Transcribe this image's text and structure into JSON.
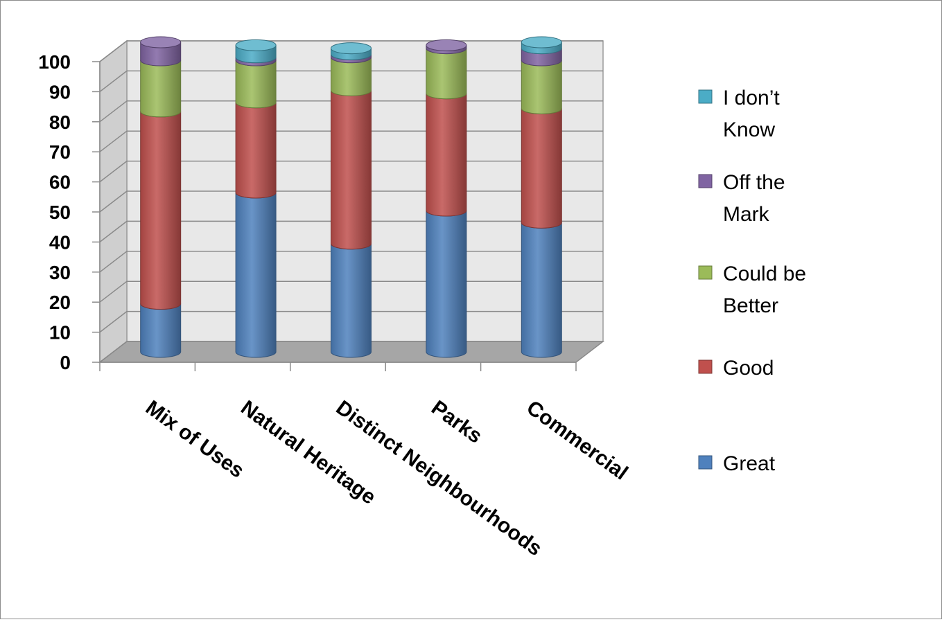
{
  "chart_data": {
    "type": "bar",
    "stacked": true,
    "three_d": true,
    "title": "",
    "xlabel": "",
    "ylabel": "",
    "ylim": [
      0,
      100
    ],
    "yticks": [
      0,
      10,
      20,
      30,
      40,
      50,
      60,
      70,
      80,
      90,
      100
    ],
    "grid": true,
    "legend": "right",
    "categories": [
      "Mix of Uses",
      "Natural Heritage",
      "Distinct Neighbourhoods",
      "Parks",
      "Commercial"
    ],
    "series": [
      {
        "name": "Great",
        "color": "#4f81bd",
        "values": [
          16,
          53,
          36,
          47,
          43
        ]
      },
      {
        "name": "Good",
        "color": "#c0504d",
        "values": [
          64,
          30,
          51,
          39,
          38
        ]
      },
      {
        "name": "Could be Better",
        "color": "#9bbb59",
        "values": [
          17,
          14,
          11,
          15,
          16
        ]
      },
      {
        "name": "Off the Mark",
        "color": "#8064a2",
        "values": [
          6,
          1,
          1,
          1,
          4
        ]
      },
      {
        "name": "I don’t Know",
        "color": "#4bacc6",
        "values": [
          0,
          4,
          2,
          0,
          2
        ]
      }
    ],
    "legend_entries": [
      {
        "lines": [
          "I don’t",
          "Know"
        ],
        "color": "#4bacc6"
      },
      {
        "lines": [
          "Off the",
          "Mark"
        ],
        "color": "#8064a2"
      },
      {
        "lines": [
          "Could be",
          "Better"
        ],
        "color": "#9bbb59"
      },
      {
        "lines": [
          "Good"
        ],
        "color": "#c0504d"
      },
      {
        "lines": [
          "Great"
        ],
        "color": "#4f81bd"
      }
    ]
  }
}
